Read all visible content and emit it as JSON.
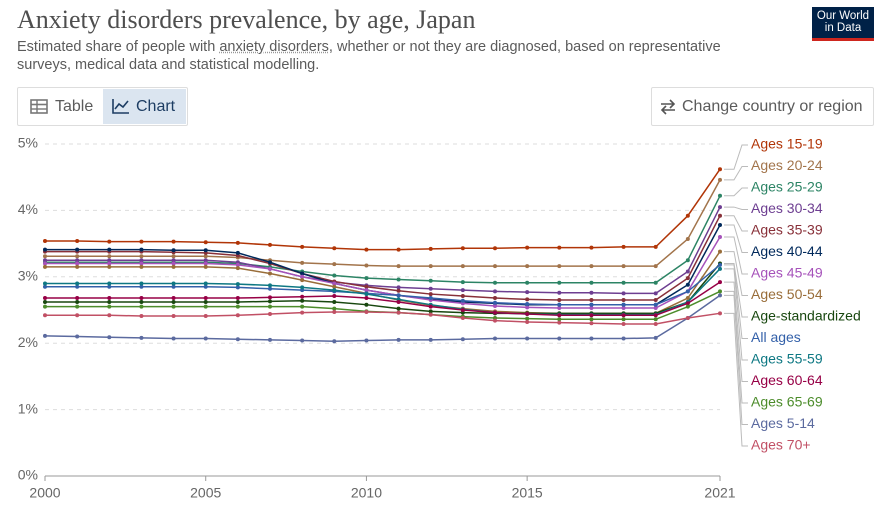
{
  "header": {
    "title": "Anxiety disorders prevalence, by age, Japan",
    "subtitle_before": "Estimated share of people with ",
    "subtitle_link": "anxiety disorders",
    "subtitle_after": ", whether or not they are diagnosed, based on representative surveys, medical data and statistical modelling.",
    "logo_line1": "Our World",
    "logo_line2": "in Data",
    "tab_table": "Table",
    "tab_chart": "Chart",
    "button": "Change country or region"
  },
  "chart_data": {
    "type": "line",
    "x": [
      2000,
      2001,
      2002,
      2003,
      2004,
      2005,
      2006,
      2007,
      2008,
      2009,
      2010,
      2011,
      2012,
      2013,
      2014,
      2015,
      2016,
      2017,
      2018,
      2019,
      2020,
      2021
    ],
    "xlim": [
      2000,
      2021
    ],
    "xticks": [
      2000,
      2005,
      2010,
      2015,
      2021
    ],
    "ylim": [
      0,
      5
    ],
    "yticks": [
      {
        "value": 0,
        "label": "0%"
      },
      {
        "value": 1,
        "label": "1%"
      },
      {
        "value": 2,
        "label": "2%"
      },
      {
        "value": 3,
        "label": "3%"
      },
      {
        "value": 4,
        "label": "4%"
      },
      {
        "value": 5,
        "label": "5%"
      }
    ],
    "grid": true,
    "series": [
      {
        "name": "Ages 15-19",
        "color": "#b13507",
        "values": [
          3.54,
          3.54,
          3.53,
          3.53,
          3.53,
          3.52,
          3.51,
          3.48,
          3.45,
          3.43,
          3.41,
          3.41,
          3.42,
          3.43,
          3.43,
          3.44,
          3.44,
          3.44,
          3.45,
          3.45,
          3.92,
          4.62
        ]
      },
      {
        "name": "Ages 20-24",
        "color": "#a2744b",
        "values": [
          3.31,
          3.31,
          3.31,
          3.31,
          3.31,
          3.31,
          3.29,
          3.25,
          3.21,
          3.19,
          3.17,
          3.16,
          3.16,
          3.16,
          3.16,
          3.16,
          3.16,
          3.16,
          3.16,
          3.16,
          3.57,
          4.46
        ]
      },
      {
        "name": "Ages 25-29",
        "color": "#2c8465",
        "values": [
          3.22,
          3.22,
          3.22,
          3.22,
          3.22,
          3.22,
          3.2,
          3.15,
          3.08,
          3.02,
          2.98,
          2.96,
          2.94,
          2.92,
          2.91,
          2.91,
          2.91,
          2.91,
          2.91,
          2.91,
          3.25,
          4.22
        ]
      },
      {
        "name": "Ages 30-34",
        "color": "#6d3e91",
        "values": [
          3.25,
          3.25,
          3.25,
          3.25,
          3.25,
          3.25,
          3.22,
          3.12,
          3.0,
          2.92,
          2.87,
          2.84,
          2.82,
          2.8,
          2.78,
          2.77,
          2.76,
          2.76,
          2.75,
          2.75,
          3.08,
          4.05
        ]
      },
      {
        "name": "Ages 35-39",
        "color": "#883039",
        "values": [
          3.38,
          3.38,
          3.38,
          3.38,
          3.37,
          3.36,
          3.32,
          3.2,
          3.05,
          2.93,
          2.85,
          2.79,
          2.74,
          2.71,
          2.68,
          2.66,
          2.65,
          2.65,
          2.65,
          2.65,
          2.98,
          3.92
        ]
      },
      {
        "name": "Ages 40-44",
        "color": "#00295b",
        "values": [
          3.41,
          3.41,
          3.41,
          3.41,
          3.4,
          3.4,
          3.36,
          3.22,
          3.05,
          2.9,
          2.8,
          2.72,
          2.66,
          2.62,
          2.6,
          2.58,
          2.58,
          2.58,
          2.58,
          2.58,
          2.88,
          3.78
        ]
      },
      {
        "name": "Ages 45-49",
        "color": "#a652ba",
        "values": [
          3.2,
          3.2,
          3.2,
          3.2,
          3.2,
          3.2,
          3.18,
          3.12,
          3.0,
          2.9,
          2.8,
          2.72,
          2.65,
          2.6,
          2.56,
          2.54,
          2.53,
          2.53,
          2.53,
          2.53,
          2.78,
          3.6
        ]
      },
      {
        "name": "Ages 50-54",
        "color": "#996d39",
        "values": [
          3.15,
          3.15,
          3.15,
          3.15,
          3.15,
          3.15,
          3.13,
          3.05,
          2.95,
          2.85,
          2.75,
          2.65,
          2.57,
          2.52,
          2.48,
          2.46,
          2.45,
          2.45,
          2.45,
          2.45,
          2.68,
          3.38
        ]
      },
      {
        "name": "Age-standardized",
        "color": "#18470f",
        "values": [
          2.62,
          2.62,
          2.62,
          2.62,
          2.62,
          2.62,
          2.62,
          2.63,
          2.64,
          2.62,
          2.58,
          2.52,
          2.48,
          2.46,
          2.45,
          2.45,
          2.45,
          2.45,
          2.45,
          2.45,
          2.62,
          3.2
        ]
      },
      {
        "name": "All ages",
        "color": "#3360a9",
        "values": [
          2.85,
          2.85,
          2.85,
          2.85,
          2.85,
          2.85,
          2.84,
          2.82,
          2.8,
          2.78,
          2.75,
          2.72,
          2.68,
          2.64,
          2.61,
          2.59,
          2.58,
          2.58,
          2.58,
          2.58,
          2.78,
          3.18
        ]
      },
      {
        "name": "Ages 55-59",
        "color": "#0e7883",
        "values": [
          2.9,
          2.9,
          2.9,
          2.9,
          2.9,
          2.9,
          2.89,
          2.87,
          2.84,
          2.8,
          2.74,
          2.66,
          2.58,
          2.51,
          2.46,
          2.44,
          2.43,
          2.43,
          2.43,
          2.43,
          2.62,
          3.12
        ]
      },
      {
        "name": "Ages 60-64",
        "color": "#970046",
        "values": [
          2.68,
          2.68,
          2.68,
          2.68,
          2.68,
          2.68,
          2.68,
          2.69,
          2.7,
          2.71,
          2.68,
          2.62,
          2.55,
          2.5,
          2.46,
          2.44,
          2.42,
          2.42,
          2.42,
          2.42,
          2.6,
          2.92
        ]
      },
      {
        "name": "Ages 65-69",
        "color": "#4c8c2b",
        "values": [
          2.55,
          2.55,
          2.55,
          2.55,
          2.55,
          2.55,
          2.55,
          2.55,
          2.55,
          2.52,
          2.48,
          2.46,
          2.43,
          2.4,
          2.38,
          2.37,
          2.36,
          2.36,
          2.36,
          2.36,
          2.55,
          2.78
        ]
      },
      {
        "name": "Ages 5-14",
        "color": "#5b6a9f",
        "values": [
          2.11,
          2.1,
          2.09,
          2.08,
          2.07,
          2.07,
          2.06,
          2.05,
          2.04,
          2.03,
          2.04,
          2.05,
          2.05,
          2.06,
          2.07,
          2.07,
          2.07,
          2.07,
          2.07,
          2.08,
          2.38,
          2.72
        ]
      },
      {
        "name": "Ages 70+",
        "color": "#c15065",
        "values": [
          2.42,
          2.42,
          2.42,
          2.41,
          2.41,
          2.41,
          2.42,
          2.44,
          2.46,
          2.47,
          2.47,
          2.46,
          2.43,
          2.38,
          2.34,
          2.32,
          2.31,
          2.3,
          2.29,
          2.29,
          2.38,
          2.45
        ]
      }
    ]
  }
}
